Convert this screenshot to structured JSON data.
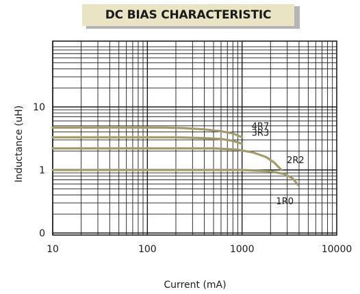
{
  "chart_data": {
    "type": "line",
    "title": "DC BIAS CHARACTERISTIC",
    "xlabel": "Current (mA)",
    "ylabel": "Inductance (uH)",
    "x_scale": "log",
    "y_scale": "log",
    "xlim": [
      10,
      10000
    ],
    "x_ticks": [
      10,
      100,
      1000,
      10000
    ],
    "x_tick_labels": [
      "10",
      "100",
      "1000",
      "10000"
    ],
    "y_tick_labels": [
      {
        "value": 10,
        "label": "10"
      },
      {
        "value": 1,
        "label": "1"
      },
      {
        "value": 0.1,
        "label": "0"
      }
    ],
    "grid": true,
    "line_color": "#a19a6a",
    "series": [
      {
        "name": "4R7",
        "x": [
          10,
          150,
          250,
          400,
          600,
          800,
          1000
        ],
        "y": [
          4.7,
          4.7,
          4.6,
          4.4,
          4.1,
          3.8,
          3.3
        ]
      },
      {
        "name": "3R3",
        "x": [
          10,
          200,
          400,
          600,
          800,
          1000
        ],
        "y": [
          3.3,
          3.3,
          3.2,
          3.1,
          2.9,
          2.6
        ]
      },
      {
        "name": "2R2",
        "x": [
          10,
          500,
          900,
          1300,
          1800,
          2200,
          2600
        ],
        "y": [
          2.2,
          2.2,
          2.1,
          1.9,
          1.6,
          1.3,
          1.0
        ]
      },
      {
        "name": "1R0",
        "x": [
          10,
          1000,
          2000,
          2800,
          3400,
          3900
        ],
        "y": [
          1.0,
          1.0,
          0.95,
          0.86,
          0.74,
          0.58
        ]
      }
    ]
  }
}
